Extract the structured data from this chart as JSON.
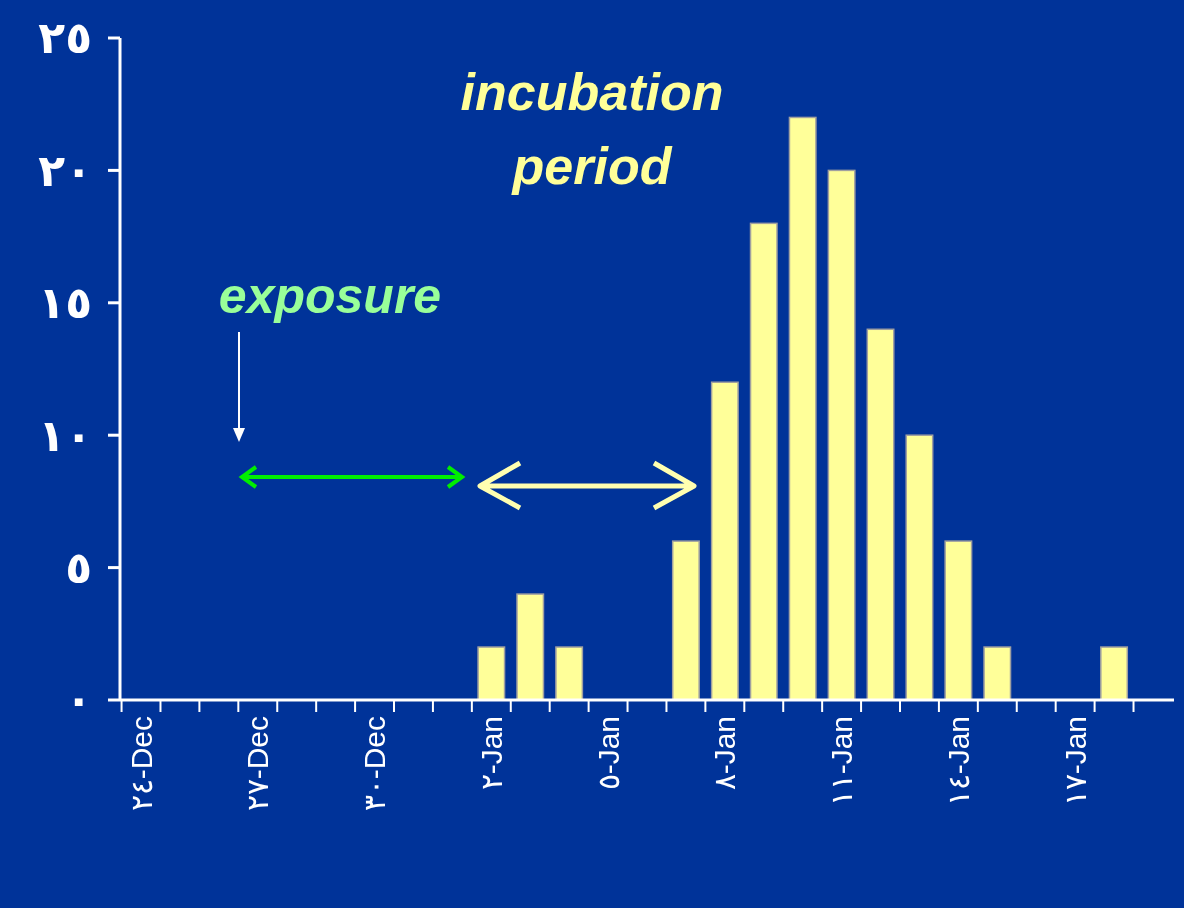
{
  "chart_data": {
    "type": "bar",
    "annotations": [
      "incubation period",
      "exposure"
    ],
    "categories": [
      "٢٤-Dec",
      null,
      null,
      "٢٧-Dec",
      null,
      null,
      "٣٠-Dec",
      null,
      null,
      "٢-Jan",
      null,
      null,
      "٥-Jan",
      null,
      null,
      "٨-Jan",
      null,
      null,
      "١١-Jan",
      null,
      null,
      "١٤-Jan",
      null,
      null,
      "١٧-Jan",
      null,
      null
    ],
    "values": [
      0,
      0,
      0,
      0,
      0,
      0,
      0,
      0,
      0,
      2,
      4,
      2,
      0,
      0,
      6,
      12,
      18,
      22,
      20,
      14,
      10,
      6,
      2,
      0,
      0,
      2,
      0
    ],
    "color": "#ffff99",
    "ylim": [
      0,
      25
    ],
    "yticks": [
      {
        "value": 0,
        "label": "٠"
      },
      {
        "value": 5,
        "label": "٥"
      },
      {
        "value": 10,
        "label": "١٠"
      },
      {
        "value": 15,
        "label": "١٥"
      },
      {
        "value": 20,
        "label": "٢٠"
      },
      {
        "value": 25,
        "label": "٢٥"
      }
    ],
    "grid": false
  }
}
